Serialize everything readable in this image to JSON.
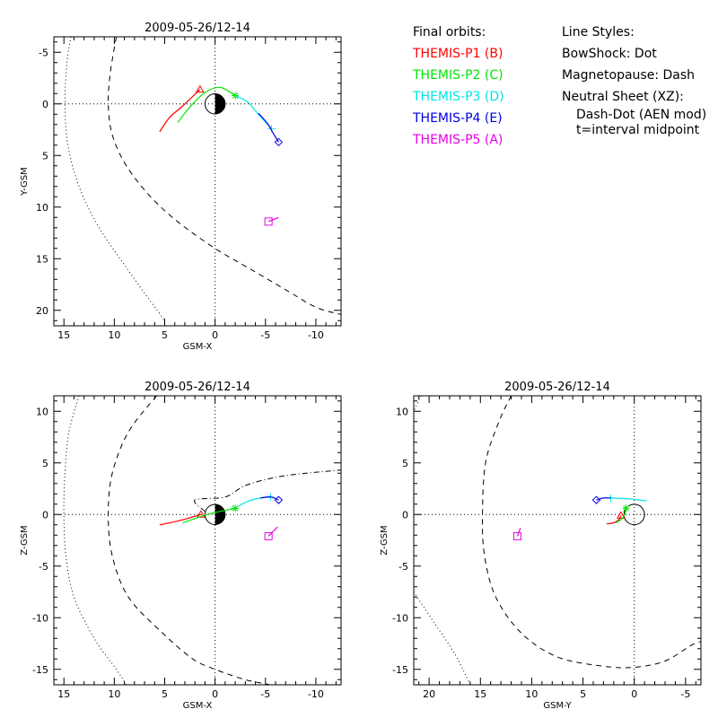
{
  "legend": {
    "orbits_title": "Final orbits:",
    "styles_title": "Line Styles:",
    "probes": [
      {
        "label": "THEMIS-P1 (B)",
        "color": "#ff0000",
        "marker": "triangle"
      },
      {
        "label": "THEMIS-P2 (C)",
        "color": "#00e600",
        "marker": "asterisk"
      },
      {
        "label": "THEMIS-P3 (D)",
        "color": "#00e6e6",
        "marker": "plus"
      },
      {
        "label": "THEMIS-P4 (E)",
        "color": "#0000e6",
        "marker": "diamond"
      },
      {
        "label": "THEMIS-P5 (A)",
        "color": "#e600e6",
        "marker": "square"
      }
    ],
    "styles": [
      "BowShock: Dot",
      "Magnetopause: Dash",
      "Neutral Sheet (XZ):",
      "Dash-Dot (AEN mod)",
      "t=interval midpoint"
    ]
  },
  "chart_data": [
    {
      "type": "line",
      "id": "xy",
      "title": "2009-05-26/12-14",
      "xlabel": "GSM-X",
      "ylabel": "Y-GSM",
      "xlim": [
        16,
        -12.5
      ],
      "ylim": [
        -6.5,
        21.5
      ],
      "xticks": [
        15,
        10,
        5,
        0,
        -5,
        -10
      ],
      "yticks": [
        -5,
        0,
        5,
        10,
        15,
        20
      ],
      "xtick_labels": [
        "15",
        "10",
        "5",
        "0",
        "-5",
        "-10"
      ],
      "ytick_labels": [
        "-5",
        "0",
        "5",
        "10",
        "15",
        "20"
      ],
      "grid": "origin dotted lines",
      "earth": {
        "x": 0,
        "y": 0,
        "radius": 1
      },
      "bow_shock": [
        [
          14.3,
          -6.5
        ],
        [
          14.7,
          -4
        ],
        [
          14.9,
          0
        ],
        [
          14.6,
          4
        ],
        [
          13.5,
          8
        ],
        [
          11.5,
          12
        ],
        [
          8.7,
          16
        ],
        [
          6.5,
          19
        ],
        [
          5.0,
          21
        ]
      ],
      "magnetopause": [
        [
          9.8,
          -6.5
        ],
        [
          10.4,
          -3
        ],
        [
          10.6,
          0
        ],
        [
          10.2,
          3
        ],
        [
          8.8,
          6
        ],
        [
          6.4,
          9
        ],
        [
          3.6,
          11.5
        ],
        [
          0,
          14
        ],
        [
          -3.5,
          16
        ],
        [
          -7,
          18
        ],
        [
          -10,
          19.7
        ],
        [
          -12.5,
          20.4
        ]
      ],
      "series": [
        {
          "name": "THEMIS-P1 (B)",
          "color": "#ff0000",
          "marker": "triangle",
          "points": [
            [
              5.5,
              2.7
            ],
            [
              4.5,
              1.3
            ],
            [
              3.2,
              0.2
            ],
            [
              1.5,
              -1.4
            ]
          ],
          "marker_at": [
            1.5,
            -1.4
          ]
        },
        {
          "name": "THEMIS-P2 (C)",
          "color": "#00e600",
          "marker": "asterisk",
          "points": [
            [
              3.7,
              1.8
            ],
            [
              2.5,
              0.3
            ],
            [
              1.0,
              -1.1
            ],
            [
              -0.5,
              -1.6
            ],
            [
              -2.0,
              -0.8
            ]
          ],
          "marker_at": [
            -2.0,
            -0.8
          ]
        },
        {
          "name": "THEMIS-P3 (D)",
          "color": "#00e6e6",
          "marker": "plus",
          "points": [
            [
              -2.0,
              -0.8
            ],
            [
              -3.2,
              -0.2
            ],
            [
              -4.3,
              1.0
            ],
            [
              -5.6,
              2.4
            ]
          ],
          "marker_at": [
            -5.6,
            2.4
          ]
        },
        {
          "name": "THEMIS-P4 (E)",
          "color": "#0000e6",
          "marker": "diamond",
          "points": [
            [
              -4.3,
              0.9
            ],
            [
              -5.2,
              1.9
            ],
            [
              -5.8,
              2.9
            ],
            [
              -6.3,
              3.7
            ]
          ],
          "marker_at": [
            -6.3,
            3.7
          ]
        },
        {
          "name": "THEMIS-P5 (A)",
          "color": "#e600e6",
          "marker": "square",
          "points": [
            [
              -5.3,
              11.4
            ],
            [
              -6.3,
              11.0
            ]
          ],
          "marker_at": [
            -5.3,
            11.4
          ]
        }
      ]
    },
    {
      "type": "line",
      "id": "xz",
      "title": "2009-05-26/12-14",
      "xlabel": "GSM-X",
      "ylabel": "Z-GSM",
      "xlim": [
        16,
        -12.5
      ],
      "ylim": [
        11.5,
        -16.5
      ],
      "xticks": [
        15,
        10,
        5,
        0,
        -5,
        -10
      ],
      "yticks": [
        10,
        5,
        0,
        -5,
        -10,
        -15
      ],
      "xtick_labels": [
        "15",
        "10",
        "5",
        "0",
        "-5",
        "-10"
      ],
      "ytick_labels": [
        "10",
        "5",
        "0",
        "-5",
        "-10",
        "-15"
      ],
      "grid": "origin dotted lines",
      "earth": {
        "x": 0,
        "y": 0,
        "radius": 1
      },
      "bow_shock": [
        [
          13.5,
          11.5
        ],
        [
          14.5,
          8
        ],
        [
          14.9,
          4
        ],
        [
          15.0,
          0
        ],
        [
          14.8,
          -4
        ],
        [
          14.0,
          -8
        ],
        [
          12.0,
          -12
        ],
        [
          9.8,
          -15
        ],
        [
          8.8,
          -16.5
        ]
      ],
      "magnetopause": [
        [
          5.8,
          11.5
        ],
        [
          8.6,
          8
        ],
        [
          10.2,
          4
        ],
        [
          10.6,
          0
        ],
        [
          10.2,
          -4
        ],
        [
          8.6,
          -8
        ],
        [
          5.2,
          -11.5
        ],
        [
          2.2,
          -14
        ],
        [
          0,
          -15
        ],
        [
          -3,
          -16
        ],
        [
          -5.5,
          -16.5
        ]
      ],
      "neutral_sheet": [
        [
          1.0,
          0.3
        ],
        [
          2.0,
          1.4
        ],
        [
          -1,
          1.7
        ],
        [
          -3,
          2.8
        ],
        [
          -6,
          3.6
        ],
        [
          -9,
          4.0
        ],
        [
          -12.5,
          4.3
        ]
      ],
      "series": [
        {
          "name": "THEMIS-P1 (B)",
          "color": "#ff0000",
          "marker": "triangle",
          "points": [
            [
              5.5,
              -1.0
            ],
            [
              4.0,
              -0.7
            ],
            [
              2.8,
              -0.4
            ],
            [
              1.4,
              0.0
            ]
          ],
          "marker_at": [
            1.4,
            0.0
          ]
        },
        {
          "name": "THEMIS-P2 (C)",
          "color": "#00e600",
          "marker": "asterisk",
          "points": [
            [
              3.2,
              -0.8
            ],
            [
              2.0,
              -0.4
            ],
            [
              0.8,
              0.0
            ],
            [
              -0.5,
              0.3
            ],
            [
              -2.0,
              0.6
            ]
          ],
          "marker_at": [
            -2.0,
            0.6
          ]
        },
        {
          "name": "THEMIS-P3 (D)",
          "color": "#00e6e6",
          "marker": "plus",
          "points": [
            [
              -2.3,
              0.8
            ],
            [
              -3.3,
              1.3
            ],
            [
              -4.5,
              1.6
            ],
            [
              -5.5,
              1.7
            ]
          ],
          "marker_at": [
            -5.5,
            1.7
          ]
        },
        {
          "name": "THEMIS-P4 (E)",
          "color": "#0000e6",
          "marker": "diamond",
          "points": [
            [
              -4.5,
              1.6
            ],
            [
              -5.5,
              1.7
            ],
            [
              -6.3,
              1.4
            ]
          ],
          "marker_at": [
            -6.3,
            1.4
          ]
        },
        {
          "name": "THEMIS-P5 (A)",
          "color": "#e600e6",
          "marker": "square",
          "points": [
            [
              -5.3,
              -2.1
            ],
            [
              -6.2,
              -1.2
            ]
          ],
          "marker_at": [
            -5.3,
            -2.1
          ]
        }
      ]
    },
    {
      "type": "line",
      "id": "yz",
      "title": "2009-05-26/12-14",
      "xlabel": "GSM-Y",
      "ylabel": "Z-GSM",
      "xlim": [
        21.5,
        -6.5
      ],
      "ylim": [
        11.5,
        -16.5
      ],
      "xticks": [
        20,
        15,
        10,
        5,
        0,
        -5
      ],
      "yticks": [
        10,
        5,
        0,
        -5,
        -10,
        -15
      ],
      "xtick_labels": [
        "20",
        "15",
        "10",
        "5",
        "0",
        "-5"
      ],
      "ytick_labels": [
        "10",
        "5",
        "0",
        "-5",
        "-10",
        "-15"
      ],
      "grid": "origin dotted lines",
      "earth": {
        "x": 0,
        "y": 0,
        "radius": 1
      },
      "bow_shock": [
        [
          20.8,
          11.5
        ],
        [
          21.5,
          10.0
        ]
      ],
      "bow_shock_2": [
        [
          21.5,
          -7.5
        ],
        [
          19.5,
          -10.5
        ],
        [
          17.5,
          -13.5
        ],
        [
          16.0,
          -16.5
        ]
      ],
      "magnetopause": [
        [
          12.0,
          11.5
        ],
        [
          13.2,
          9
        ],
        [
          14.5,
          5
        ],
        [
          14.8,
          0
        ],
        [
          14.6,
          -4
        ],
        [
          13.5,
          -8
        ],
        [
          11.0,
          -11.5
        ],
        [
          7.5,
          -13.8
        ],
        [
          3.0,
          -14.7
        ],
        [
          0,
          -14.8
        ],
        [
          -3.0,
          -14.2
        ],
        [
          -5.5,
          -12.7
        ],
        [
          -6.5,
          -12.3
        ]
      ],
      "series": [
        {
          "name": "THEMIS-P1 (B)",
          "color": "#ff0000",
          "marker": "triangle",
          "points": [
            [
              2.7,
              -0.9
            ],
            [
              2.0,
              -0.8
            ],
            [
              1.5,
              -0.5
            ],
            [
              1.3,
              -0.1
            ]
          ],
          "marker_at": [
            1.3,
            -0.1
          ]
        },
        {
          "name": "THEMIS-P2 (C)",
          "color": "#00e600",
          "marker": "asterisk",
          "points": [
            [
              1.8,
              -0.8
            ],
            [
              1.2,
              -0.4
            ],
            [
              0.9,
              0.1
            ],
            [
              0.8,
              0.6
            ]
          ],
          "marker_at": [
            0.8,
            0.6
          ]
        },
        {
          "name": "THEMIS-P3 (D)",
          "color": "#00e6e6",
          "marker": "plus",
          "points": [
            [
              -1.2,
              1.3
            ],
            [
              -0.5,
              1.4
            ],
            [
              0.3,
              1.5
            ],
            [
              2.3,
              1.6
            ]
          ],
          "marker_at": [
            2.3,
            1.6
          ]
        },
        {
          "name": "THEMIS-P4 (E)",
          "color": "#0000e6",
          "marker": "diamond",
          "points": [
            [
              2.3,
              1.6
            ],
            [
              3.0,
              1.6
            ],
            [
              3.7,
              1.4
            ]
          ],
          "marker_at": [
            3.7,
            1.4
          ]
        },
        {
          "name": "THEMIS-P5 (A)",
          "color": "#e600e6",
          "marker": "square",
          "points": [
            [
              11.4,
              -2.1
            ],
            [
              11.1,
              -1.3
            ]
          ],
          "marker_at": [
            11.4,
            -2.1
          ]
        }
      ]
    }
  ]
}
